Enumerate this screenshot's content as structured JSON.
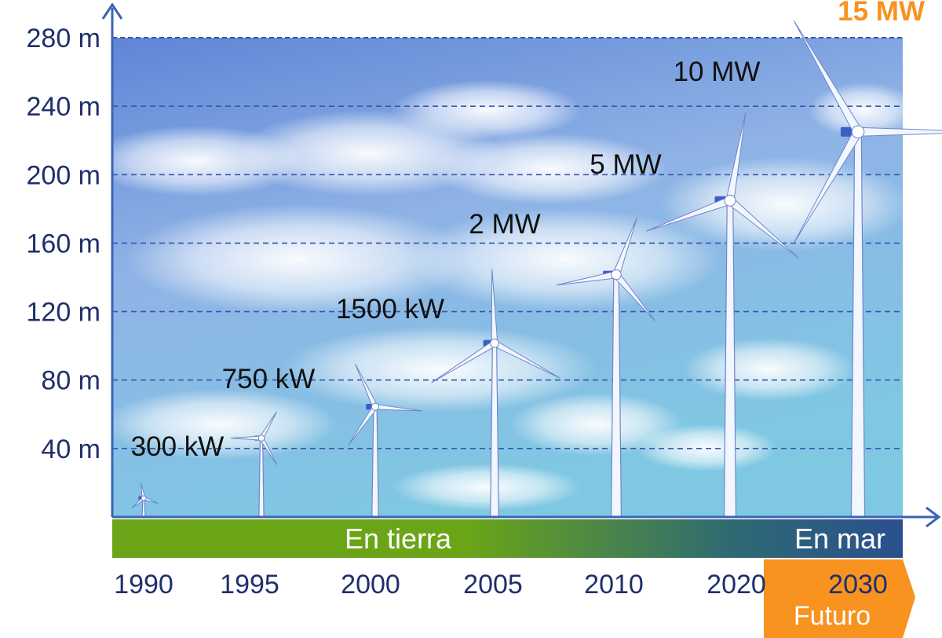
{
  "chart_data": {
    "type": "scatter",
    "title": "",
    "xlabel": "",
    "ylabel": "",
    "y_unit": "m",
    "ylim": [
      0,
      280
    ],
    "y_ticks": [
      "40 m",
      "80 m",
      "120 m",
      "160 m",
      "200 m",
      "240 m",
      "280 m"
    ],
    "grid": true,
    "x_ticks": [
      "1990",
      "1995",
      "2000",
      "2005",
      "2010",
      "2020",
      "2030"
    ],
    "turbines": [
      {
        "year": "1990",
        "capacity": "300 kW",
        "tip_height": 20
      },
      {
        "year": "1995",
        "capacity": "750 kW",
        "tip_height": 64
      },
      {
        "year": "2000",
        "capacity": "1500 kW",
        "tip_height": 92
      },
      {
        "year": "2005",
        "capacity": "2 MW",
        "tip_height": 145
      },
      {
        "year": "2010",
        "capacity": "5 MW",
        "tip_height": 177
      },
      {
        "year": "2020",
        "capacity": "10 MW",
        "tip_height": 237
      },
      {
        "year": "2030",
        "capacity": "15 MW",
        "tip_height": 300
      }
    ],
    "bands": {
      "onshore_label": "En tierra",
      "offshore_label": "En mar",
      "future_label": "Futuro"
    },
    "colors": {
      "axis": "#3c63b7",
      "tick_text": "#1f2f6b",
      "grid": "#3a56b0",
      "onshore": "#6aa518",
      "offshore": "#2a4f8f",
      "future": "#f7931e",
      "accent_label": "#f7931e"
    }
  }
}
